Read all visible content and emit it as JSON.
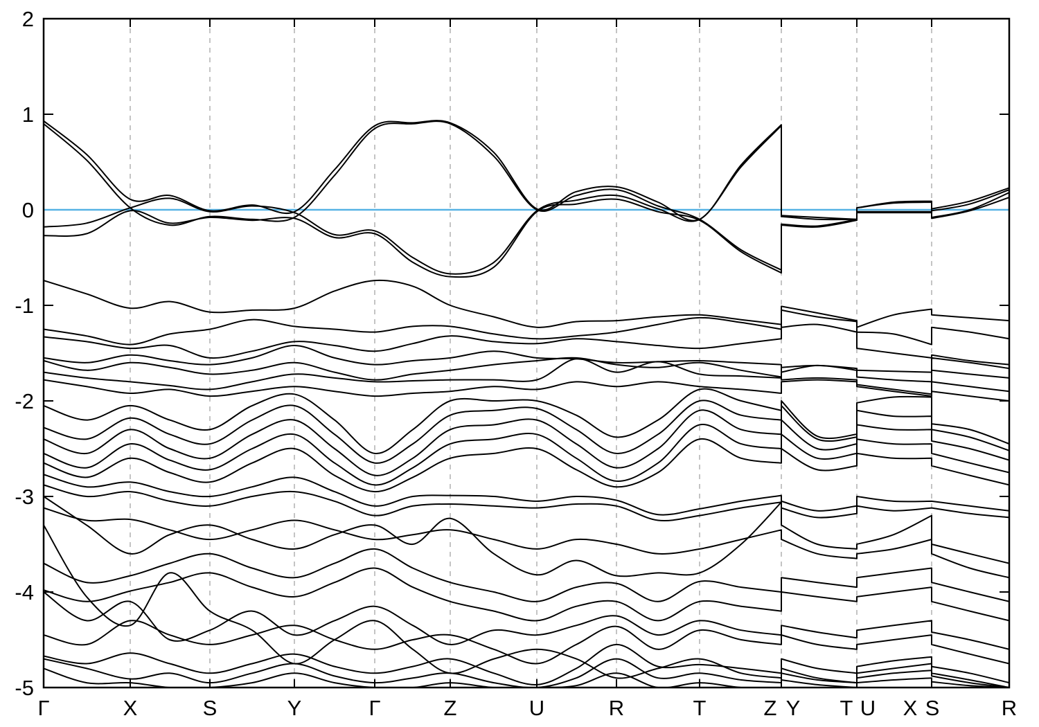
{
  "figure": {
    "background": "#ffffff",
    "axis_color": "#000000",
    "grid_color": "#b0b0b0",
    "band_color": "#000000"
  },
  "chart_data": {
    "type": "line",
    "title": "",
    "xlabel": "",
    "ylabel": "",
    "ylim": [
      -5,
      2
    ],
    "grid": "vertical-dashed-at-kpoints",
    "legend": "none",
    "fermi_line": {
      "energy": 0,
      "color": "#56b2e4"
    },
    "yticks": [
      {
        "label": "2",
        "value": 2
      },
      {
        "label": "1",
        "value": 1
      },
      {
        "label": "0",
        "value": 0
      },
      {
        "label": "-1",
        "value": -1
      },
      {
        "label": "-2",
        "value": -2
      },
      {
        "label": "-3",
        "value": -3
      },
      {
        "label": "-4",
        "value": -4
      },
      {
        "label": "-5",
        "value": -5
      }
    ],
    "kpath_total": 1394,
    "kpoint_ticks": [
      {
        "label": "Γ",
        "k": 0,
        "dx": 0
      },
      {
        "label": "X",
        "k": 125,
        "dx": 0
      },
      {
        "label": "S",
        "k": 240,
        "dx": 0
      },
      {
        "label": "Y",
        "k": 362,
        "dx": 0
      },
      {
        "label": "Γ",
        "k": 478,
        "dx": 0
      },
      {
        "label": "Z",
        "k": 587,
        "dx": 0
      },
      {
        "label": "U",
        "k": 712,
        "dx": 0
      },
      {
        "label": "R",
        "k": 827,
        "dx": 0
      },
      {
        "label": "T",
        "k": 947,
        "dx": 0
      },
      {
        "label": "Z",
        "k": 1065,
        "dx": -16
      },
      {
        "label": "Y",
        "k": 1065,
        "dx": 17
      },
      {
        "label": "T",
        "k": 1174,
        "dx": -15
      },
      {
        "label": "U",
        "k": 1174,
        "dx": 16
      },
      {
        "label": "X",
        "k": 1282,
        "dx": -31
      },
      {
        "label": "S",
        "k": 1282,
        "dx": 1
      },
      {
        "label": "R",
        "k": 1394,
        "dx": 0
      }
    ],
    "segment_boundaries": [
      1065,
      1174,
      1282
    ],
    "columns": [
      0,
      62,
      125,
      182,
      240,
      301,
      362,
      420,
      478,
      533,
      587,
      650,
      712,
      769,
      827,
      887,
      947,
      1007,
      1065,
      1065,
      1117,
      1174,
      1174,
      1227,
      1282,
      1282,
      1337,
      1394
    ],
    "bands": [
      [
        0.93,
        0.58,
        0.11,
        0.15,
        -0.01,
        0.05,
        -0.02,
        0.42,
        0.88,
        0.91,
        0.91,
        0.6,
        0.01,
        0.19,
        0.24,
        0.08,
        -0.1,
        0.47,
        0.89,
        -0.06,
        -0.08,
        -0.1,
        0.02,
        0.08,
        0.09,
        0.01,
        0.09,
        0.23
      ],
      [
        0.9,
        0.52,
        0.02,
        -0.16,
        -0.07,
        -0.1,
        -0.08,
        0.36,
        0.85,
        0.9,
        0.9,
        0.56,
        0.0,
        0.15,
        0.21,
        0.04,
        -0.1,
        -0.42,
        -0.63,
        -0.15,
        -0.17,
        -0.1,
        -0.02,
        -0.02,
        -0.02,
        -0.08,
        0.0,
        0.18
      ],
      [
        -0.18,
        -0.14,
        0.02,
        0.12,
        -0.02,
        0.04,
        -0.03,
        -0.26,
        -0.22,
        -0.5,
        -0.67,
        -0.55,
        -0.01,
        0.1,
        0.15,
        0.01,
        -0.1,
        0.45,
        0.88,
        -0.07,
        -0.1,
        -0.1,
        0.02,
        0.07,
        0.08,
        -0.01,
        0.06,
        0.21
      ],
      [
        -0.27,
        -0.25,
        -0.01,
        -0.14,
        -0.08,
        -0.11,
        -0.09,
        -0.29,
        -0.25,
        -0.55,
        -0.7,
        -0.6,
        -0.02,
        0.06,
        0.11,
        -0.02,
        -0.11,
        -0.44,
        -0.66,
        -0.16,
        -0.18,
        -0.11,
        -0.03,
        -0.03,
        -0.03,
        -0.09,
        -0.01,
        0.13
      ],
      [
        -0.74,
        -0.88,
        -1.03,
        -0.96,
        -1.07,
        -1.05,
        -1.03,
        -0.85,
        -0.74,
        -0.8,
        -1.0,
        -1.12,
        -1.23,
        -1.17,
        -1.16,
        -1.12,
        -1.1,
        -1.15,
        -1.2,
        -1.01,
        -1.08,
        -1.16,
        -1.23,
        -1.1,
        -1.04,
        -1.1,
        -1.13,
        -1.16
      ],
      [
        -1.25,
        -1.32,
        -1.41,
        -1.3,
        -1.25,
        -1.15,
        -1.22,
        -1.25,
        -1.28,
        -1.22,
        -1.22,
        -1.3,
        -1.35,
        -1.32,
        -1.28,
        -1.2,
        -1.13,
        -1.18,
        -1.25,
        -1.05,
        -1.12,
        -1.17,
        -1.28,
        -1.3,
        -1.41,
        -1.23,
        -1.28,
        -1.35
      ],
      [
        -1.33,
        -1.38,
        -1.45,
        -1.42,
        -1.55,
        -1.48,
        -1.38,
        -1.42,
        -1.48,
        -1.4,
        -1.32,
        -1.38,
        -1.4,
        -1.35,
        -1.38,
        -1.42,
        -1.45,
        -1.4,
        -1.35,
        -1.23,
        -1.2,
        -1.28,
        -1.45,
        -1.5,
        -1.55,
        -1.52,
        -1.58,
        -1.62
      ],
      [
        -1.55,
        -1.6,
        -1.52,
        -1.58,
        -1.62,
        -1.55,
        -1.42,
        -1.55,
        -1.62,
        -1.58,
        -1.55,
        -1.48,
        -1.55,
        -1.56,
        -1.6,
        -1.59,
        -1.58,
        -1.6,
        -1.62,
        -1.7,
        -1.63,
        -1.68,
        -1.68,
        -1.69,
        -1.7,
        -1.55,
        -1.6,
        -1.66
      ],
      [
        -1.58,
        -1.68,
        -1.6,
        -1.65,
        -1.72,
        -1.68,
        -1.6,
        -1.7,
        -1.78,
        -1.72,
        -1.68,
        -1.62,
        -1.58,
        -1.55,
        -1.62,
        -1.65,
        -1.6,
        -1.68,
        -1.75,
        -1.78,
        -1.76,
        -1.78,
        -1.83,
        -1.88,
        -1.93,
        -1.68,
        -1.72,
        -1.76
      ],
      [
        -1.7,
        -1.76,
        -1.8,
        -1.84,
        -1.88,
        -1.8,
        -1.72,
        -1.76,
        -1.8,
        -1.79,
        -1.78,
        -1.78,
        -1.78,
        -1.56,
        -1.7,
        -1.59,
        -1.72,
        -1.74,
        -1.76,
        -1.65,
        -1.63,
        -1.66,
        -1.75,
        -1.78,
        -1.8,
        -1.8,
        -1.85,
        -1.9
      ],
      [
        -1.78,
        -1.85,
        -1.92,
        -1.88,
        -1.95,
        -1.9,
        -1.85,
        -1.9,
        -1.95,
        -1.92,
        -1.9,
        -1.85,
        -1.88,
        -1.8,
        -1.85,
        -1.8,
        -1.85,
        -1.88,
        -1.92,
        -1.8,
        -1.78,
        -1.8,
        -1.85,
        -1.9,
        -1.95,
        -1.9,
        -1.95,
        -2.0
      ],
      [
        -2.05,
        -2.2,
        -2.05,
        -2.2,
        -2.3,
        -2.05,
        -1.93,
        -2.2,
        -2.55,
        -2.3,
        -2.0,
        -2.0,
        -2.0,
        -2.15,
        -2.38,
        -2.2,
        -1.88,
        -2.0,
        -2.1,
        -2.0,
        -2.37,
        -2.35,
        -2.02,
        -1.96,
        -1.96,
        -2.24,
        -2.3,
        -2.45
      ],
      [
        -2.28,
        -2.4,
        -2.18,
        -2.35,
        -2.45,
        -2.2,
        -2.05,
        -2.35,
        -2.65,
        -2.45,
        -2.15,
        -2.1,
        -2.08,
        -2.3,
        -2.55,
        -2.35,
        -2.0,
        -2.15,
        -2.2,
        -2.05,
        -2.4,
        -2.38,
        -2.1,
        -2.16,
        -2.16,
        -2.3,
        -2.38,
        -2.52
      ],
      [
        -2.4,
        -2.55,
        -2.3,
        -2.5,
        -2.6,
        -2.35,
        -2.2,
        -2.5,
        -2.78,
        -2.6,
        -2.3,
        -2.25,
        -2.2,
        -2.45,
        -2.7,
        -2.5,
        -2.1,
        -2.3,
        -2.35,
        -2.2,
        -2.5,
        -2.45,
        -2.25,
        -2.3,
        -2.3,
        -2.42,
        -2.5,
        -2.62
      ],
      [
        -2.55,
        -2.7,
        -2.45,
        -2.62,
        -2.72,
        -2.5,
        -2.35,
        -2.65,
        -2.88,
        -2.7,
        -2.45,
        -2.4,
        -2.35,
        -2.6,
        -2.84,
        -2.65,
        -2.25,
        -2.45,
        -2.5,
        -2.35,
        -2.6,
        -2.55,
        -2.4,
        -2.45,
        -2.45,
        -2.55,
        -2.65,
        -2.75
      ],
      [
        -2.65,
        -2.8,
        -2.6,
        -2.75,
        -2.85,
        -2.65,
        -2.5,
        -2.78,
        -2.95,
        -2.8,
        -2.6,
        -2.55,
        -2.5,
        -2.72,
        -2.9,
        -2.75,
        -2.4,
        -2.6,
        -2.65,
        -2.5,
        -2.72,
        -2.68,
        -2.55,
        -2.6,
        -2.6,
        -2.68,
        -2.78,
        -2.88
      ],
      [
        -2.77,
        -2.9,
        -2.85,
        -2.95,
        -3.0,
        -2.9,
        -2.8,
        -2.95,
        -3.1,
        -3.0,
        -2.99,
        -3.0,
        -3.05,
        -3.0,
        -3.04,
        -3.19,
        -3.13,
        -3.05,
        -2.99,
        -3.05,
        -3.15,
        -3.1,
        -3.0,
        -3.05,
        -3.05,
        -3.05,
        -3.1,
        -3.15
      ],
      [
        -2.88,
        -3.0,
        -2.95,
        -3.05,
        -3.1,
        -3.0,
        -2.95,
        -3.05,
        -3.2,
        -3.1,
        -3.08,
        -3.1,
        -3.12,
        -3.08,
        -3.1,
        -3.25,
        -3.2,
        -3.12,
        -3.06,
        -3.12,
        -3.22,
        -3.18,
        -3.1,
        -3.15,
        -3.12,
        -3.12,
        -3.18,
        -3.22
      ],
      [
        -3.0,
        -3.3,
        -3.6,
        -3.4,
        -3.3,
        -3.45,
        -3.55,
        -3.4,
        -3.3,
        -3.5,
        -3.23,
        -3.6,
        -3.82,
        -3.67,
        -3.83,
        -3.8,
        -3.8,
        -3.5,
        -3.06,
        -3.3,
        -3.5,
        -3.55,
        -3.5,
        -3.4,
        -3.2,
        -3.6,
        -3.75,
        -3.85
      ],
      [
        -3.12,
        -3.25,
        -3.24,
        -3.35,
        -3.45,
        -3.35,
        -3.25,
        -3.35,
        -3.45,
        -3.4,
        -3.35,
        -3.45,
        -3.55,
        -3.45,
        -3.5,
        -3.6,
        -3.55,
        -3.45,
        -3.35,
        -3.45,
        -3.6,
        -3.65,
        -3.6,
        -3.55,
        -3.45,
        -3.5,
        -3.6,
        -3.7
      ],
      [
        -3.7,
        -3.9,
        -3.83,
        -3.7,
        -3.6,
        -3.75,
        -3.85,
        -3.7,
        -3.55,
        -3.75,
        -3.9,
        -4.0,
        -4.1,
        -3.95,
        -3.91,
        -4.1,
        -3.89,
        -3.95,
        -4.0,
        -3.85,
        -3.9,
        -3.95,
        -3.85,
        -3.8,
        -3.75,
        -3.9,
        -4.0,
        -4.1
      ],
      [
        -3.98,
        -4.1,
        -3.99,
        -3.9,
        -3.8,
        -3.95,
        -4.05,
        -3.9,
        -3.75,
        -3.95,
        -4.1,
        -4.2,
        -4.3,
        -4.15,
        -4.1,
        -4.3,
        -4.1,
        -4.15,
        -4.2,
        -4.0,
        -4.05,
        -4.1,
        -4.05,
        -4.0,
        -3.95,
        -4.1,
        -4.2,
        -4.3
      ],
      [
        -4.0,
        -4.3,
        -4.1,
        -4.5,
        -4.4,
        -4.2,
        -4.45,
        -4.3,
        -4.15,
        -4.35,
        -4.55,
        -4.4,
        -4.45,
        -4.35,
        -4.25,
        -4.45,
        -4.3,
        -4.4,
        -4.45,
        -4.35,
        -4.42,
        -4.48,
        -4.4,
        -4.35,
        -4.3,
        -4.42,
        -4.5,
        -4.6
      ],
      [
        -3.3,
        -4.05,
        -4.35,
        -3.8,
        -4.2,
        -4.4,
        -4.75,
        -4.5,
        -4.3,
        -4.6,
        -4.85,
        -4.7,
        -4.6,
        -4.7,
        -4.9,
        -4.8,
        -4.7,
        -4.85,
        -4.9,
        -4.8,
        -4.9,
        -4.95,
        -4.85,
        -4.8,
        -4.75,
        -4.85,
        -4.92,
        -5.0
      ],
      [
        -4.45,
        -4.55,
        -4.3,
        -4.45,
        -4.55,
        -4.45,
        -4.35,
        -4.5,
        -4.6,
        -4.5,
        -4.45,
        -4.6,
        -4.75,
        -4.55,
        -4.36,
        -4.6,
        -4.4,
        -4.5,
        -4.55,
        -4.45,
        -4.55,
        -4.6,
        -4.55,
        -4.5,
        -4.45,
        -4.55,
        -4.65,
        -4.75
      ],
      [
        -4.67,
        -4.75,
        -4.64,
        -4.75,
        -4.85,
        -4.75,
        -4.65,
        -4.78,
        -4.85,
        -4.78,
        -4.7,
        -4.85,
        -4.97,
        -4.8,
        -4.55,
        -4.78,
        -4.76,
        -4.8,
        -4.85,
        -4.7,
        -4.8,
        -4.85,
        -4.78,
        -4.72,
        -4.68,
        -4.78,
        -4.85,
        -4.95
      ],
      [
        -4.7,
        -4.8,
        -4.91,
        -4.85,
        -4.95,
        -4.85,
        -4.75,
        -4.88,
        -4.95,
        -4.9,
        -4.85,
        -4.95,
        -5.0,
        -4.9,
        -4.7,
        -4.9,
        -4.85,
        -4.92,
        -4.95,
        -4.85,
        -4.92,
        -4.95,
        -4.9,
        -4.85,
        -4.82,
        -4.88,
        -4.95,
        -5.0
      ],
      [
        -4.8,
        -4.95,
        -4.95,
        -5.0,
        -5.0,
        -4.95,
        -4.85,
        -4.95,
        -5.0,
        -5.0,
        -4.95,
        -5.0,
        -5.0,
        -4.98,
        -4.85,
        -5.0,
        -4.95,
        -5.0,
        -5.0,
        -4.92,
        -4.97,
        -5.0,
        -4.95,
        -4.92,
        -4.9,
        -4.94,
        -4.98,
        -5.0
      ]
    ]
  }
}
